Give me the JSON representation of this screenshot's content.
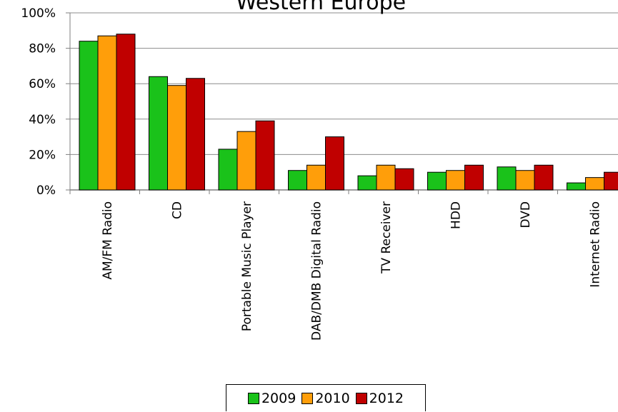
{
  "chart_data": {
    "type": "bar",
    "title": "Western Europe",
    "categories": [
      "AM/FM Radio",
      "CD",
      "Portable Music Player",
      "DAB/DMB Digital Radio",
      "TV Receiver",
      "HDD",
      "DVD",
      "Internet Radio"
    ],
    "series": [
      {
        "name": "2009",
        "color": "#1ac21a",
        "values": [
          84,
          64,
          23,
          11,
          8,
          10,
          13,
          4
        ]
      },
      {
        "name": "2010",
        "color": "#ff9e0a",
        "values": [
          87,
          59,
          33,
          14,
          14,
          11,
          11,
          7
        ]
      },
      {
        "name": "2012",
        "color": "#c00000",
        "values": [
          88,
          63,
          39,
          30,
          12,
          14,
          14,
          10
        ]
      }
    ],
    "yticks": [
      "0%",
      "20%",
      "40%",
      "60%",
      "80%",
      "100%"
    ],
    "ylim": [
      0,
      100
    ],
    "grid": true,
    "legend_position": "bottom"
  }
}
